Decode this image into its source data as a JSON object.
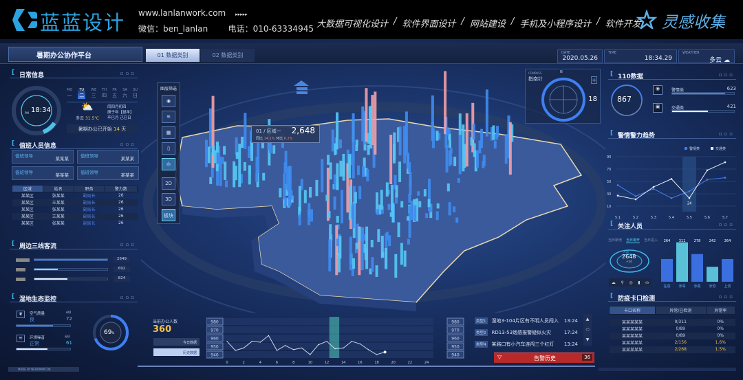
{
  "header": {
    "logo_text": "蓝蓝设计",
    "url": "www.lanlanwork.com",
    "arrows": "▸▸▸▸▸",
    "wechat": "微信：ben_lanlan",
    "phone": "电话：010-63334945",
    "nav": [
      "大数据可视化设计",
      "/",
      "软件界面设计",
      "/",
      "网站建设",
      "/",
      "手机及小程序设计",
      "/",
      "软件开发"
    ],
    "brand": "灵感收集"
  },
  "topbar": {
    "title": "暑期办公协作平台",
    "tabs": [
      "01 数据类别",
      "02 数据类别"
    ],
    "date_label": "DATE",
    "date": "2020.05.26",
    "time_label": "TIME",
    "time": "18:34.29",
    "weather_label": "WEATHER",
    "weather": "多云"
  },
  "daily": {
    "title": "日常信息",
    "clock": "18:34",
    "ampm": "PM",
    "week_en": [
      "MO",
      "TU",
      "WE",
      "TH",
      "FR",
      "SA",
      "SU"
    ],
    "week_cn": [
      "一",
      "二",
      "三",
      "四",
      "五",
      "六",
      "日"
    ],
    "active_day": 1,
    "weather": "多云",
    "temp": "31.5℃",
    "lunar": [
      "闰四月初四",
      "庚子年【鼠年】",
      "辛巳月 己巳日"
    ],
    "banner_pre": "暑期办公已开始",
    "banner_days": "14",
    "banner_unit": "天"
  },
  "duty": {
    "title": "值班人员信息",
    "cards": [
      {
        "role": "值班领导",
        "name": "某某某"
      },
      {
        "role": "值班领导",
        "name": "某某某"
      },
      {
        "role": "值班领导",
        "name": "某某某"
      },
      {
        "role": "值班领导",
        "name": "某某某"
      }
    ],
    "columns": [
      "区域",
      "姓名",
      "职务",
      "警力数"
    ],
    "rows": [
      [
        "某某区",
        "张某某",
        "副局长",
        "26"
      ],
      [
        "某某区",
        "王某某",
        "副局长",
        "26"
      ],
      [
        "某某区",
        "张某某",
        "副局长",
        "26"
      ],
      [
        "某某区",
        "王某某",
        "副局长",
        "26"
      ],
      [
        "某某区",
        "张某某",
        "副局长",
        "26"
      ]
    ]
  },
  "flow": {
    "title": "周边三线客流",
    "items": [
      {
        "value": "2649",
        "fraction": 1.0,
        "color": "#3d7be8"
      },
      {
        "value": "692",
        "fraction": 0.32,
        "color": "#6fe0f5"
      },
      {
        "value": "824",
        "fraction": 0.45,
        "color": "#e8eefa"
      }
    ]
  },
  "eco": {
    "title": "湿地生态监控",
    "air_label": "空气质量",
    "air_value": "良",
    "air_unit": "AQI",
    "air_num": "72",
    "air_fraction": 0.68,
    "noise_label": "环境噪音",
    "noise_value": "正常",
    "noise_unit": "分贝",
    "noise_num": "61",
    "noise_fraction": 0.58,
    "gauge": "69",
    "gauge_unit": "%",
    "gauge_fraction": 0.69,
    "footer": "MADE BY NEHOMMICOK"
  },
  "map": {
    "layer_title": "图层筛选",
    "layer_buttons": [
      "2D",
      "3D",
      "板块"
    ],
    "compass_label": "COMPASS",
    "compass_title": "指南针",
    "compass_n": "N",
    "compass_value": "18",
    "tooltip": {
      "region": "01 / 区域一",
      "value": "2,648",
      "yoy_label": "同比",
      "yoy": "14.1%",
      "mom_label": "环比",
      "mom": "6.2%"
    }
  },
  "office": {
    "label": "当前办公人数",
    "value": "360",
    "buttons": [
      "今日数据",
      "历史数据"
    ]
  },
  "events": {
    "items": [
      {
        "type": "类型1",
        "text": "湿地3-104片区有不明人员闯入",
        "time": "13:24"
      },
      {
        "type": "类型2",
        "text": "RD13-53烟感报警疑似火灾",
        "time": "17:24"
      },
      {
        "type": "类型4",
        "text": "某路口有小汽车连闯三个红灯",
        "time": "13:24"
      }
    ],
    "alarm_label": "告警历史",
    "alarm_count": "36"
  },
  "police110": {
    "title": "110数据",
    "total": "867",
    "items": [
      {
        "name": "警情类",
        "value": "623",
        "fraction": 0.85
      },
      {
        "name": "交通类",
        "value": "421",
        "fraction": 0.58
      }
    ]
  },
  "watch": {
    "title": "关注人员",
    "tabs": [
      "当日新增",
      "当日离开",
      "当日进入"
    ],
    "active_tab": 1,
    "people_label": "人员",
    "people": "2648",
    "delta": "+24"
  },
  "checkpoint": {
    "title": "防疫卡口检测",
    "columns": [
      "卡口名称",
      "异常/已检测",
      "异常率"
    ],
    "rows": [
      [
        "某某某某某",
        "0/311",
        "0%"
      ],
      [
        "某某某某某",
        "0/89",
        "0%"
      ],
      [
        "某某某某某",
        "0/89",
        "0%"
      ],
      [
        "某某某某某",
        "2/156",
        "1.6%"
      ],
      [
        "某某某某某",
        "2/268",
        "1.5%"
      ]
    ],
    "warn_rows": [
      3,
      4
    ]
  },
  "chart_data": [
    {
      "type": "line",
      "title": "警情警力趋势",
      "categories": [
        "5.1",
        "5.2",
        "5.3",
        "5.4",
        "5.5",
        "5.6",
        "5.7"
      ],
      "ylim": [
        0,
        90
      ],
      "yticks": [
        "90",
        "70",
        "50",
        "30",
        "10"
      ],
      "grid": true,
      "legend": "top-right",
      "series": [
        {
          "name": "警情类",
          "color": "#3f7ff0",
          "values": [
            44,
            26,
            38,
            23,
            34,
            53,
            56
          ]
        },
        {
          "name": "交通类",
          "color": "#e6ecf8",
          "values": [
            27,
            21,
            41,
            54,
            23,
            68,
            81
          ]
        }
      ],
      "annotation": "24",
      "highlight": "5.5"
    },
    {
      "type": "bar",
      "categories": [
        "在逃",
        "涉毒",
        "涉黑",
        "涉恐",
        "上访"
      ],
      "values": [
        264,
        311,
        278,
        242,
        264
      ],
      "colors": [
        "#3a6fe0",
        "#5ac0d8",
        "#3a6fe0",
        "#5ac0d8",
        "#3a6fe0"
      ]
    },
    {
      "type": "line",
      "x": [
        0,
        1,
        2,
        3,
        4,
        5,
        6,
        7,
        8,
        9,
        10,
        11,
        12,
        13,
        14,
        15,
        16,
        17,
        18,
        19
      ],
      "values": [
        956,
        945,
        948,
        956,
        955,
        963,
        945,
        951,
        946,
        948,
        940,
        952,
        956,
        947,
        948,
        956,
        953,
        946,
        940,
        943
      ],
      "xticks": [
        "0",
        "2",
        "4",
        "6",
        "8",
        "10",
        "12",
        "14",
        "16",
        "18",
        "20",
        "22",
        "24"
      ],
      "yticks": [
        "980",
        "970",
        "960",
        "950",
        "940"
      ],
      "ylim": [
        940,
        980
      ],
      "xlim": [
        0,
        24
      ],
      "highlight": [
        12.3,
        13.5
      ],
      "color": "#c9d4ea"
    }
  ]
}
